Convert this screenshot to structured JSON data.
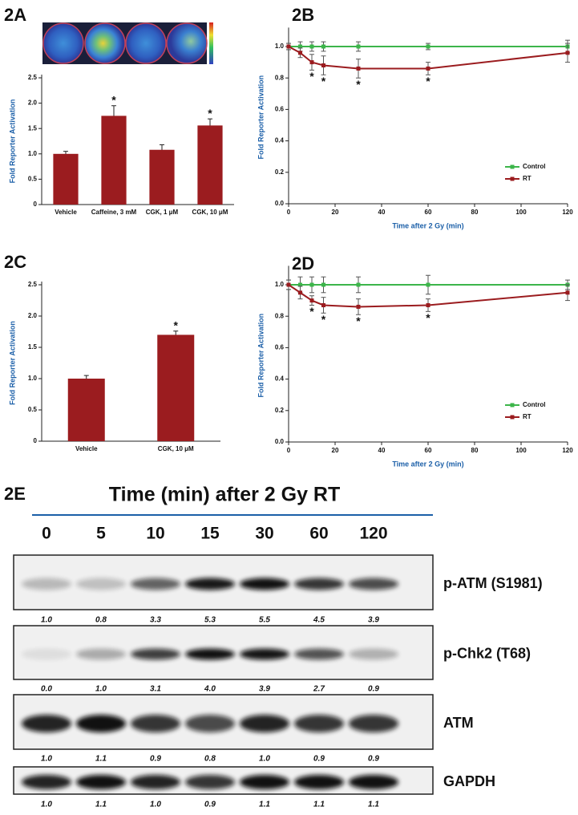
{
  "chart_data": [
    {
      "panel": "2A",
      "type": "bar",
      "ylabel": "Fold Reporter Activation",
      "categories": [
        "Vehicle",
        "Caffeine, 3 mM",
        "CGK, 1 μM",
        "CGK, 10 μM"
      ],
      "values": [
        1.0,
        1.75,
        1.08,
        1.56
      ],
      "errors": [
        0.05,
        0.2,
        0.1,
        0.13
      ],
      "significance": [
        null,
        "*",
        null,
        "*"
      ],
      "color": "#9b1c1f",
      "ylim": [
        0,
        2.5
      ],
      "yticks": [
        0,
        0.5,
        {
          "value": 1,
          "label": "1.0"
        },
        1.5,
        {
          "value": 2,
          "label": "2.0"
        },
        2.5
      ]
    },
    {
      "panel": "2B",
      "type": "line",
      "ylabel": "Fold Reporter Activation",
      "xlabel": "Time after 2 Gy (min)",
      "x": [
        0,
        5,
        10,
        15,
        30,
        60,
        120
      ],
      "series": [
        {
          "name": "Control",
          "color": "#3cb54a",
          "values": [
            1.0,
            1.0,
            1.0,
            1.0,
            1.0,
            1.0,
            1.0
          ],
          "errors": [
            0.02,
            0.03,
            0.03,
            0.03,
            0.03,
            0.02,
            0.04
          ]
        },
        {
          "name": "RT",
          "color": "#9b1c1f",
          "values": [
            1.0,
            0.96,
            0.9,
            0.88,
            0.86,
            0.86,
            0.96
          ],
          "errors": [
            0.02,
            0.03,
            0.05,
            0.06,
            0.06,
            0.04,
            0.06
          ],
          "significance": [
            null,
            null,
            "*",
            "*",
            "*",
            "*",
            null
          ]
        }
      ],
      "xlim": [
        0,
        120
      ],
      "xticks": [
        0,
        20,
        40,
        60,
        80,
        100,
        120
      ],
      "ylim": [
        0,
        1.1
      ],
      "yticks": [
        {
          "value": 0,
          "label": "0.0"
        },
        0.2,
        0.4,
        0.6,
        0.8,
        {
          "value": 1,
          "label": "1.0"
        }
      ],
      "legend": "lower right"
    },
    {
      "panel": "2C",
      "type": "bar",
      "ylabel": "Fold Reporter Activation",
      "categories": [
        "Vehicle",
        "CGK, 10 μM"
      ],
      "values": [
        1.0,
        1.7
      ],
      "errors": [
        0.05,
        0.06
      ],
      "significance": [
        null,
        "*"
      ],
      "color": "#9b1c1f",
      "ylim": [
        0,
        2.5
      ],
      "yticks": [
        0,
        0.5,
        {
          "value": 1,
          "label": "1.0"
        },
        1.5,
        {
          "value": 2,
          "label": "2.0"
        },
        2.5
      ]
    },
    {
      "panel": "2D",
      "type": "line",
      "ylabel": "Fold Reporter Activation",
      "xlabel": "Time after 2 Gy (min)",
      "x": [
        0,
        5,
        10,
        15,
        30,
        60,
        120
      ],
      "series": [
        {
          "name": "Control",
          "color": "#3cb54a",
          "values": [
            1.0,
            1.0,
            1.0,
            1.0,
            1.0,
            1.0,
            1.0
          ],
          "errors": [
            0.03,
            0.05,
            0.05,
            0.05,
            0.05,
            0.06,
            0.03
          ]
        },
        {
          "name": "RT",
          "color": "#9b1c1f",
          "values": [
            1.0,
            0.95,
            0.9,
            0.87,
            0.86,
            0.87,
            0.95
          ],
          "errors": [
            0.03,
            0.04,
            0.03,
            0.05,
            0.05,
            0.04,
            0.05
          ],
          "significance": [
            null,
            null,
            "*",
            "*",
            "*",
            "*",
            null
          ]
        }
      ],
      "xlim": [
        0,
        120
      ],
      "xticks": [
        0,
        20,
        40,
        60,
        80,
        100,
        120
      ],
      "ylim": [
        0,
        1.1
      ],
      "yticks": [
        {
          "value": 0,
          "label": "0.0"
        },
        0.2,
        0.4,
        0.6,
        0.8,
        {
          "value": 1,
          "label": "1.0"
        }
      ],
      "legend": "lower right"
    }
  ],
  "blot": {
    "panel": "2E",
    "title": "Time (min) after 2 Gy RT",
    "lanes": [
      "0",
      "5",
      "10",
      "15",
      "30",
      "60",
      "120"
    ],
    "rows": [
      {
        "name": "p-ATM (S1981)",
        "values": [
          "1.0",
          "0.8",
          "3.3",
          "5.3",
          "5.5",
          "4.5",
          "3.9"
        ]
      },
      {
        "name": "p-Chk2 (T68)",
        "values": [
          "0.0",
          "1.0",
          "3.1",
          "4.0",
          "3.9",
          "2.7",
          "0.9"
        ]
      },
      {
        "name": "ATM",
        "values": [
          "1.0",
          "1.1",
          "0.9",
          "0.8",
          "1.0",
          "0.9",
          "0.9"
        ]
      },
      {
        "name": "GAPDH",
        "values": [
          "1.0",
          "1.1",
          "1.0",
          "0.9",
          "1.1",
          "1.1",
          "1.1"
        ]
      }
    ]
  }
}
